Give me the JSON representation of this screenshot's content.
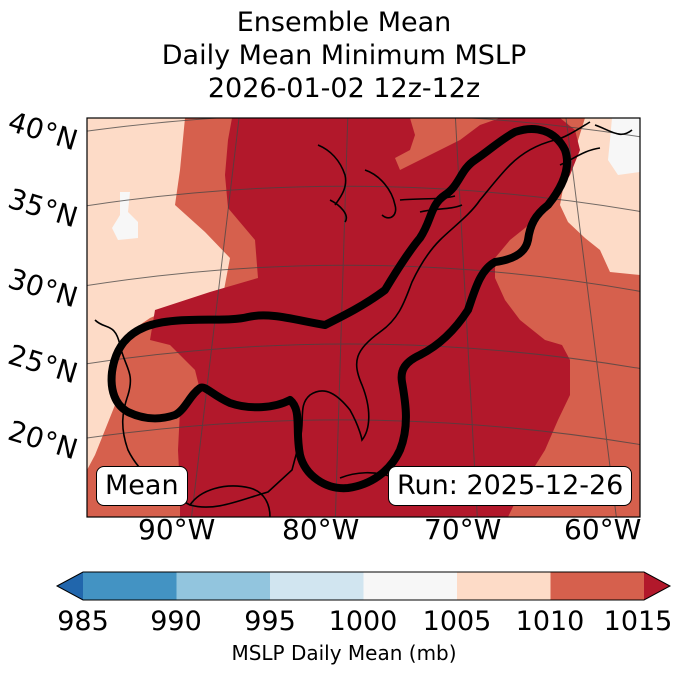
{
  "title": {
    "line1": "Ensemble Mean",
    "line2": "Daily Mean Minimum MSLP",
    "line3": "2026-01-02 12z-12z"
  },
  "map": {
    "lat_labels": [
      "40°N",
      "35°N",
      "30°N",
      "25°N",
      "20°N"
    ],
    "lon_labels": [
      "90°W",
      "80°W",
      "70°W",
      "60°W"
    ],
    "mean_box": "Mean",
    "run_box": "Run: 2025-12-26"
  },
  "colorbar": {
    "ticks": [
      "985",
      "990",
      "995",
      "1000",
      "1005",
      "1010",
      "1015"
    ],
    "label": "MSLP Daily Mean (mb)",
    "colors": [
      "#2166ac",
      "#4393c3",
      "#92c5de",
      "#d1e5f0",
      "#f7f7f7",
      "#fddbc7",
      "#d6604d",
      "#b2182b"
    ]
  }
}
